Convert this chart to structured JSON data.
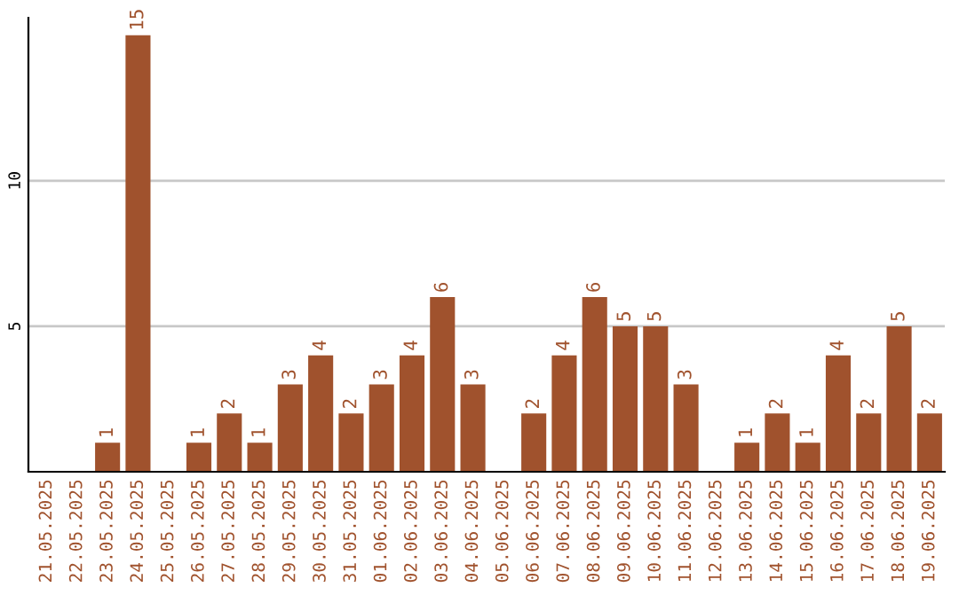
{
  "chart_data": {
    "type": "bar",
    "categories": [
      "21.05.2025",
      "22.05.2025",
      "23.05.2025",
      "24.05.2025",
      "25.05.2025",
      "26.05.2025",
      "27.05.2025",
      "28.05.2025",
      "29.05.2025",
      "30.05.2025",
      "31.05.2025",
      "01.06.2025",
      "02.06.2025",
      "03.06.2025",
      "04.06.2025",
      "05.06.2025",
      "06.06.2025",
      "07.06.2025",
      "08.06.2025",
      "09.06.2025",
      "10.06.2025",
      "11.06.2025",
      "12.06.2025",
      "13.06.2025",
      "14.06.2025",
      "15.06.2025",
      "16.06.2025",
      "17.06.2025",
      "18.06.2025",
      "19.06.2025"
    ],
    "values": [
      0,
      0,
      1,
      15,
      0,
      1,
      2,
      1,
      3,
      4,
      2,
      3,
      4,
      6,
      3,
      0,
      2,
      4,
      6,
      5,
      5,
      3,
      0,
      1,
      2,
      1,
      4,
      2,
      5,
      2
    ],
    "value_labels": [
      null,
      null,
      "1",
      "15",
      null,
      "1",
      "2",
      "1",
      "3",
      "4",
      "2",
      "3",
      "4",
      "6",
      "3",
      null,
      "2",
      "4",
      "6",
      "5",
      "5",
      "3",
      null,
      "1",
      "2",
      "1",
      "4",
      "2",
      "5",
      "2"
    ],
    "color": "#a0522d",
    "ylim": [
      0,
      15.6
    ],
    "yticks": [
      5,
      10
    ],
    "grid": "y"
  }
}
